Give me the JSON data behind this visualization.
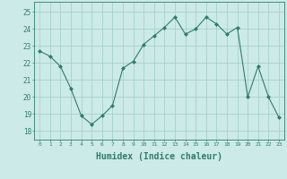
{
  "x": [
    0,
    1,
    2,
    3,
    4,
    5,
    6,
    7,
    8,
    9,
    10,
    11,
    12,
    13,
    14,
    15,
    16,
    17,
    18,
    19,
    20,
    21,
    22,
    23
  ],
  "y": [
    22.7,
    22.4,
    21.8,
    20.5,
    18.9,
    18.4,
    18.9,
    19.5,
    21.7,
    22.1,
    23.1,
    23.6,
    24.1,
    24.7,
    23.7,
    24.0,
    24.7,
    24.3,
    23.7,
    24.1,
    20.0,
    21.8,
    20.0,
    18.8
  ],
  "line_color": "#2e7d6e",
  "marker": "D",
  "marker_size": 2.0,
  "bg_color": "#cceae8",
  "grid_color": "#a0ccc8",
  "tick_color": "#2e7d6e",
  "xlabel": "Humidex (Indice chaleur)",
  "xlabel_fontsize": 7,
  "ylabel_ticks": [
    18,
    19,
    20,
    21,
    22,
    23,
    24,
    25
  ],
  "xtick_labels": [
    "0",
    "1",
    "2",
    "3",
    "4",
    "5",
    "6",
    "7",
    "8",
    "9",
    "10",
    "11",
    "12",
    "13",
    "14",
    "15",
    "16",
    "17",
    "18",
    "19",
    "20",
    "21",
    "22",
    "23"
  ],
  "ylim": [
    17.5,
    25.6
  ],
  "xlim": [
    -0.5,
    23.5
  ],
  "title": ""
}
